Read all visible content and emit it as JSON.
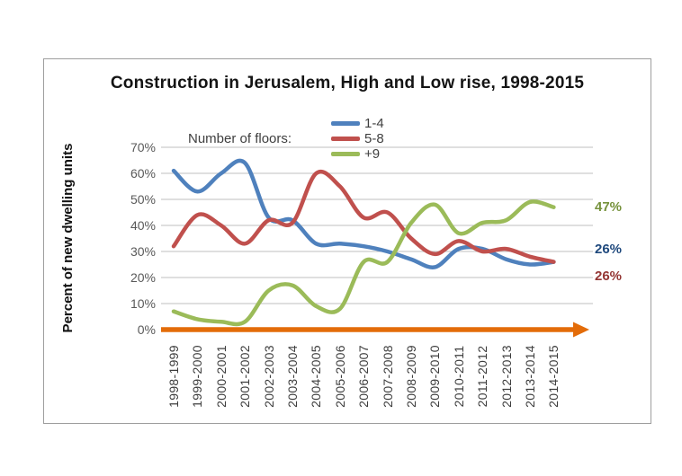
{
  "title": "Construction in Jerusalem, High and Low rise, 1998-2015",
  "legend": {
    "title": "Number of floors:",
    "items": [
      {
        "label": "1-4",
        "color": "#4F81BD"
      },
      {
        "label": "5-8",
        "color": "#C0504D"
      },
      {
        "label": "+9",
        "color": "#9BBB59"
      }
    ]
  },
  "y_axis": {
    "label": "Percent of new dwelling units",
    "tick_labels": [
      "70%",
      "60%",
      "50%",
      "40%",
      "30%",
      "20%",
      "10%",
      "0%"
    ],
    "tick_values": [
      70,
      60,
      50,
      40,
      30,
      20,
      10,
      0
    ]
  },
  "end_labels": [
    {
      "text": "47%",
      "series": "+9",
      "color": "#76923C",
      "value": 47
    },
    {
      "text": "26%",
      "series": "1-4",
      "color": "#1F497D",
      "value": 26
    },
    {
      "text": "26%",
      "series": "5-8",
      "color": "#943634",
      "value": 26
    }
  ],
  "colors": {
    "axis_arrow": "#E36C09",
    "gridline": "#BFBFBF",
    "border": "#9E9E9E",
    "tick_text": "#595959"
  },
  "chart_data": {
    "type": "line",
    "line_style": "smooth",
    "title": "Construction in Jerusalem, High and Low rise, 1998-2015",
    "xlabel": "",
    "ylabel": "Percent of new dwelling units",
    "ylim": [
      0,
      70
    ],
    "y_tick_step": 10,
    "grid": true,
    "legend_position": "top",
    "categories": [
      "1998-1999",
      "1999-2000",
      "2000-2001",
      "2001-2002",
      "2002-2003",
      "2003-2004",
      "2004-2005",
      "2005-2006",
      "2006-2007",
      "2007-2008",
      "2008-2009",
      "2009-2010",
      "2010-2011",
      "2011-2012",
      "2012-2013",
      "2013-2014",
      "2014-2015"
    ],
    "series": [
      {
        "name": "1-4",
        "color": "#4F81BD",
        "values": [
          61,
          53,
          60,
          64,
          43,
          42,
          33,
          33,
          32,
          30,
          27,
          24,
          31,
          31,
          27,
          25,
          26
        ]
      },
      {
        "name": "5-8",
        "color": "#C0504D",
        "values": [
          32,
          44,
          40,
          33,
          42,
          41,
          60,
          55,
          43,
          45,
          35,
          29,
          34,
          30,
          31,
          28,
          26
        ]
      },
      {
        "name": "+9",
        "color": "#9BBB59",
        "values": [
          7,
          4,
          3,
          3,
          15,
          17,
          9,
          8,
          26,
          26,
          41,
          48,
          37,
          41,
          42,
          49,
          47
        ]
      }
    ]
  }
}
